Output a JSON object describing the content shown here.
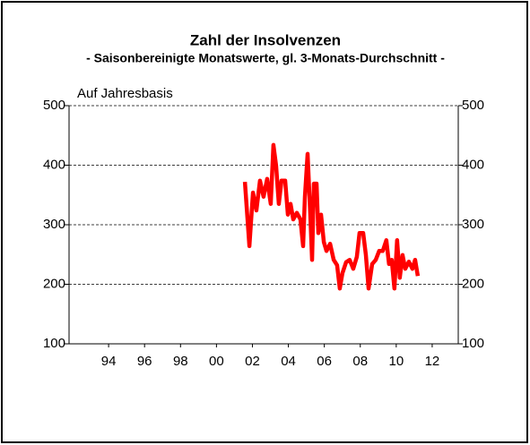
{
  "chart_data": {
    "type": "line",
    "title": "Zahl der Insolvenzen",
    "subtitle": "- Saisonbereinigte Monatswerte, gl. 3-Monats-Durchschnitt -",
    "y_label": "Auf Jahresbasis",
    "color": "#ff0000",
    "x": [
      2001.58,
      2001.83,
      2002.03,
      2002.22,
      2002.42,
      2002.62,
      2002.82,
      2003.02,
      2003.17,
      2003.32,
      2003.47,
      2003.62,
      2003.82,
      2003.97,
      2004.12,
      2004.27,
      2004.47,
      2004.67,
      2004.82,
      2004.92,
      2005.07,
      2005.22,
      2005.32,
      2005.42,
      2005.57,
      2005.67,
      2005.82,
      2005.97,
      2006.12,
      2006.32,
      2006.52,
      2006.71,
      2006.86,
      2007.01,
      2007.21,
      2007.41,
      2007.61,
      2007.81,
      2007.96,
      2008.16,
      2008.31,
      2008.46,
      2008.66,
      2008.86,
      2009.05,
      2009.25,
      2009.45,
      2009.6,
      2009.75,
      2009.9,
      2010.05,
      2010.2,
      2010.35,
      2010.5,
      2010.7,
      2010.9,
      2011.05,
      2011.2
    ],
    "values": [
      372,
      264,
      354,
      324,
      374,
      347,
      377,
      335,
      434,
      399,
      335,
      374,
      374,
      317,
      335,
      309,
      320,
      309,
      264,
      347,
      419,
      317,
      241,
      369,
      369,
      286,
      317,
      271,
      256,
      268,
      241,
      232,
      193,
      219,
      237,
      241,
      226,
      246,
      286,
      286,
      249,
      193,
      234,
      241,
      256,
      256,
      274,
      234,
      241,
      193,
      274,
      211,
      249,
      226,
      238,
      226,
      241,
      214
    ],
    "xlim": [
      1991.8,
      2013.45
    ],
    "xticks": [
      {
        "value": 1994,
        "label": "94"
      },
      {
        "value": 1996,
        "label": "96"
      },
      {
        "value": 1998,
        "label": "98"
      },
      {
        "value": 2000,
        "label": "00"
      },
      {
        "value": 2002,
        "label": "02"
      },
      {
        "value": 2004,
        "label": "04"
      },
      {
        "value": 2006,
        "label": "06"
      },
      {
        "value": 2008,
        "label": "08"
      },
      {
        "value": 2010,
        "label": "10"
      },
      {
        "value": 2012,
        "label": "12"
      }
    ],
    "ylim": [
      100,
      500
    ],
    "yticks": [
      100,
      200,
      300,
      400,
      500
    ],
    "y2lim": [
      100,
      500
    ],
    "y2ticks": [
      100,
      200,
      300,
      400,
      500
    ],
    "grid": true
  }
}
